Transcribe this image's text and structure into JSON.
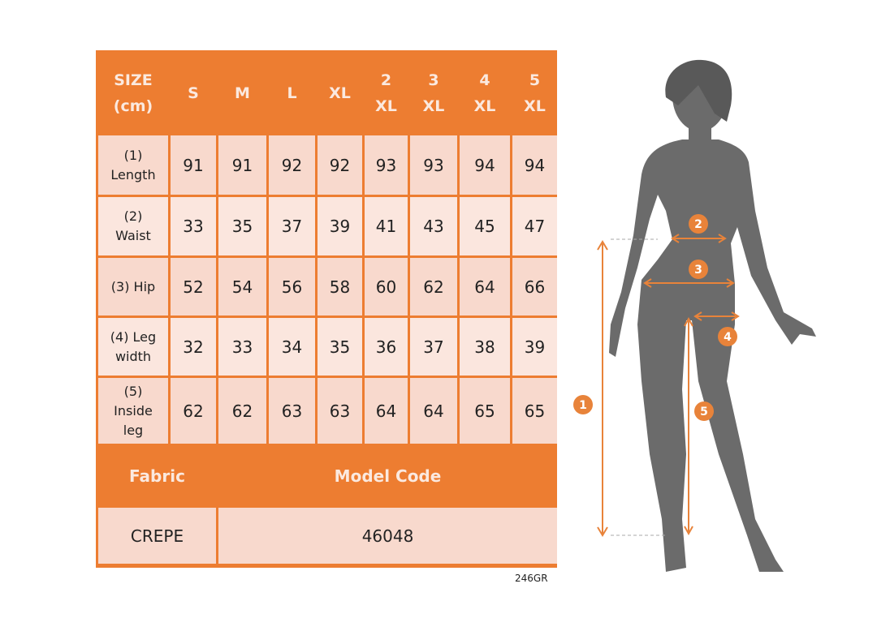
{
  "header": {
    "size_label_line1": "SIZE",
    "size_label_line2": "(cm)",
    "sizes": [
      [
        "S",
        ""
      ],
      [
        "M",
        ""
      ],
      [
        "L",
        ""
      ],
      [
        "XL",
        ""
      ],
      [
        "2",
        "XL"
      ],
      [
        "3",
        "XL"
      ],
      [
        "4",
        "XL"
      ],
      [
        "5",
        "XL"
      ]
    ]
  },
  "rows": [
    {
      "label": [
        "(1)",
        "Length"
      ],
      "values": [
        "91",
        "91",
        "92",
        "92",
        "93",
        "93",
        "94",
        "94"
      ]
    },
    {
      "label": [
        "(2)",
        "Waist"
      ],
      "values": [
        "33",
        "35",
        "37",
        "39",
        "41",
        "43",
        "45",
        "47"
      ]
    },
    {
      "label": [
        "(3) Hip"
      ],
      "values": [
        "52",
        "54",
        "56",
        "58",
        "60",
        "62",
        "64",
        "66"
      ]
    },
    {
      "label": [
        "(4) Leg",
        "width"
      ],
      "values": [
        "32",
        "33",
        "34",
        "35",
        "36",
        "37",
        "38",
        "39"
      ]
    },
    {
      "label": [
        "(5)",
        "Inside",
        "leg"
      ],
      "values": [
        "62",
        "62",
        "63",
        "63",
        "64",
        "64",
        "65",
        "65"
      ]
    }
  ],
  "footer": {
    "fabric_label": "Fabric",
    "model_code_label": "Model Code",
    "fabric_value": "CREPE",
    "model_code_value": "46048"
  },
  "image_code": "246GR",
  "figure": {
    "markers": [
      "1",
      "2",
      "3",
      "4",
      "5"
    ]
  },
  "colors": {
    "accent": "#ED7D31",
    "cell_dark": "#F8D9CD",
    "cell_light": "#FBE6DE",
    "silhouette": "#6B6B6B"
  }
}
